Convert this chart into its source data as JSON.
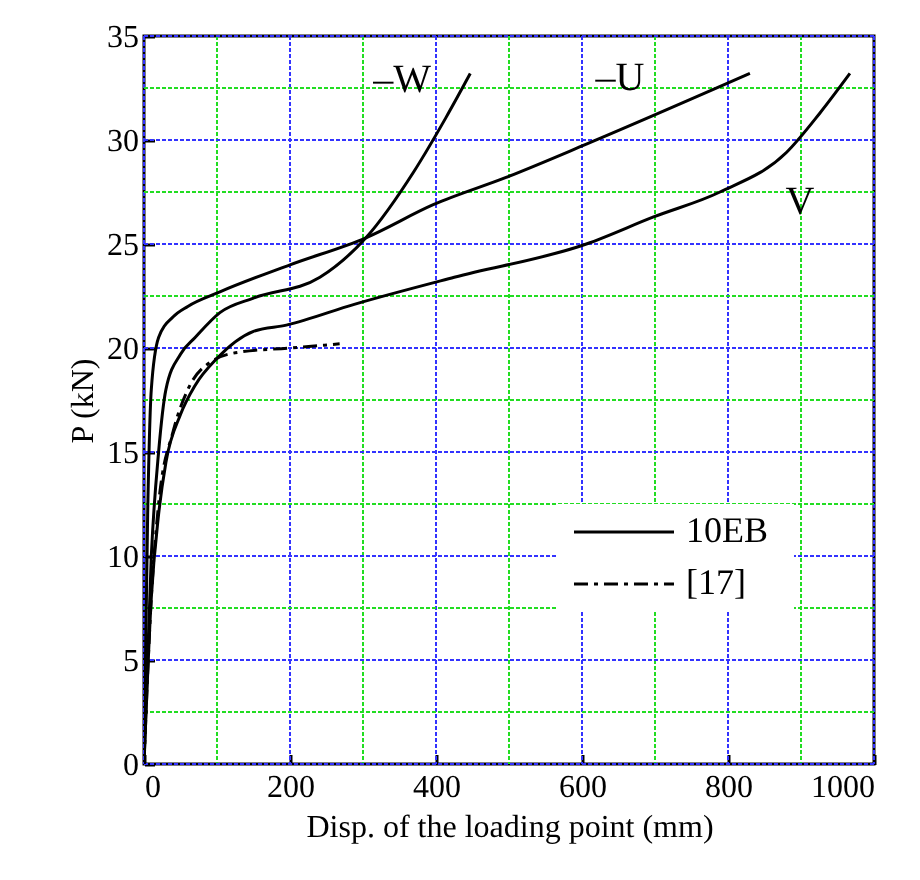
{
  "chart_data": {
    "type": "line",
    "xlabel": "Disp. of the loading point (mm)",
    "ylabel": "P (kN)",
    "xlim": [
      0,
      1000
    ],
    "xticks": [
      0,
      {
        "value": 100,
        "label": null
      },
      200,
      {
        "value": 300,
        "label": null
      },
      400,
      {
        "value": 500,
        "label": null
      },
      600,
      {
        "value": 700,
        "label": null
      },
      800,
      {
        "value": 900,
        "label": null
      },
      1000
    ],
    "ylim": [
      0,
      35
    ],
    "yticks": [
      0,
      {
        "value": 2.5,
        "label": null
      },
      5,
      {
        "value": 7.5,
        "label": null
      },
      10,
      {
        "value": 12.5,
        "label": null
      },
      15,
      {
        "value": 17.5,
        "label": null
      },
      20,
      {
        "value": 22.5,
        "label": null
      },
      25,
      {
        "value": 27.5,
        "label": null
      },
      30,
      {
        "value": 32.5,
        "label": null
      },
      35
    ],
    "grid": true,
    "legend": "right",
    "series": [
      {
        "name": "10EB",
        "color": "#000000",
        "line_style": "solid",
        "x": [
          0,
          5,
          10,
          20,
          40,
          60,
          104,
          200,
          304,
          397,
          496,
          606,
          830
        ],
        "values": [
          0,
          12,
          18,
          20.5,
          21.5,
          22,
          22.7,
          24,
          25.3,
          26.9,
          28.2,
          29.8,
          33.2
        ]
      },
      {
        "color": "#000000",
        "line_style": "solid",
        "x": [
          0,
          10,
          20,
          30,
          50,
          70,
          104,
          150,
          241,
          304,
          370,
          414,
          447
        ],
        "values": [
          0,
          10,
          15,
          18,
          19.7,
          20.5,
          21.7,
          22.4,
          23.4,
          25.3,
          28.5,
          31.1,
          33.2
        ]
      },
      {
        "color": "#000000",
        "line_style": "solid",
        "x": [
          0,
          10,
          20,
          30,
          50,
          70,
          100,
          150,
          195,
          288,
          425,
          606,
          698,
          789,
          880,
          926,
          967
        ],
        "values": [
          0,
          8,
          12,
          14.5,
          16.8,
          18.2,
          19.5,
          20.8,
          21.1,
          22.1,
          23.4,
          25,
          26.3,
          27.5,
          29.4,
          31.3,
          33.2
        ]
      },
      {
        "name": "[17]",
        "color": "#000000",
        "line_style": "dashdot",
        "x": [
          0,
          10,
          20,
          40,
          60,
          90,
          130,
          200,
          268
        ],
        "values": [
          0,
          8,
          12.5,
          16,
          18,
          19.3,
          19.8,
          20,
          20.2
        ]
      }
    ],
    "annotations": [
      "–W",
      "–U",
      "V"
    ]
  }
}
